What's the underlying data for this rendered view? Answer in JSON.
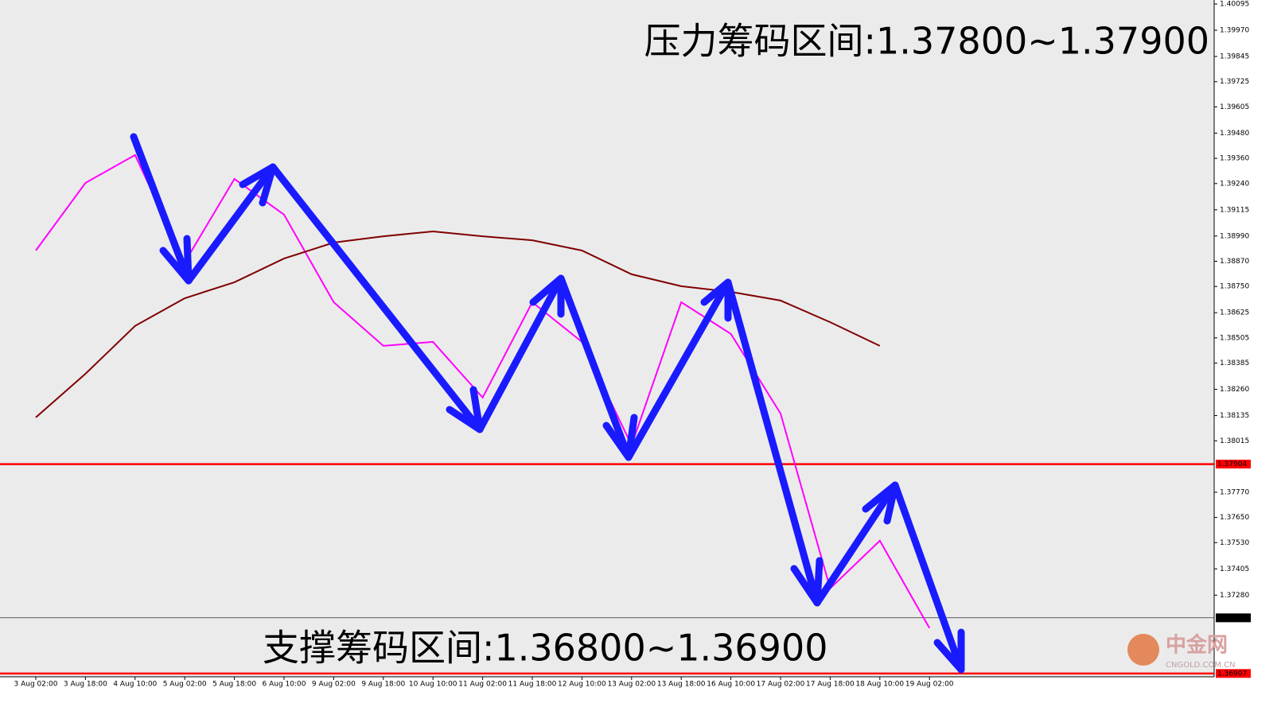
{
  "chart_data": {
    "type": "line",
    "annotations": [
      "压力筹码区间:1.37800~1.37900",
      "支撑筹码区间:1.36800~1.36900"
    ],
    "watermark": {
      "title": "中金网",
      "subtitle": "CNGOLD.COM.CN"
    },
    "categories": [
      "3 Aug 02:00",
      "3 Aug 18:00",
      "4 Aug 10:00",
      "5 Aug 02:00",
      "5 Aug 18:00",
      "6 Aug 10:00",
      "9 Aug 02:00",
      "9 Aug 18:00",
      "10 Aug 10:00",
      "11 Aug 02:00",
      "11 Aug 18:00",
      "12 Aug 10:00",
      "13 Aug 02:00",
      "13 Aug 18:00",
      "16 Aug 10:00",
      "17 Aug 02:00",
      "17 Aug 18:00",
      "18 Aug 10:00",
      "19 Aug 02:00"
    ],
    "series": [
      {
        "color": "#ff00ff",
        "values": [
          1.38921,
          1.39243,
          1.39376,
          1.38865,
          1.39262,
          1.39092,
          1.38675,
          1.38467,
          1.38486,
          1.38221,
          1.38675,
          1.38486,
          1.37994,
          1.38675,
          1.38524,
          1.38145,
          1.37312,
          1.37539,
          1.37123
        ]
      },
      {
        "color": "#800000",
        "values": [
          1.38126,
          1.38334,
          1.38562,
          1.38694,
          1.3877,
          1.38883,
          1.38959,
          1.38989,
          1.39012,
          1.38989,
          1.3897,
          1.38921,
          1.38808,
          1.38751,
          1.38724,
          1.38683,
          1.3858,
          1.38467,
          null
        ]
      }
    ],
    "levels": [
      {
        "value": 1.37904,
        "color": "#ff0000"
      },
      {
        "value": 1.37172,
        "color": "#000000"
      },
      {
        "value": 1.36907,
        "color": "#ff0000"
      }
    ],
    "ylim": [
      1.36895,
      1.40114
    ],
    "yticks": [
      {
        "value": 1.40095,
        "label": "1.40095"
      },
      {
        "value": 1.3997,
        "label": "1.39970"
      },
      {
        "value": 1.39845,
        "label": "1.39845"
      },
      {
        "value": 1.39725,
        "label": "1.39725"
      },
      {
        "value": 1.39605,
        "label": "1.39605"
      },
      {
        "value": 1.3948,
        "label": "1.39480"
      },
      {
        "value": 1.3936,
        "label": "1.39360"
      },
      {
        "value": 1.3924,
        "label": "1.39240"
      },
      {
        "value": 1.39115,
        "label": "1.39115"
      },
      {
        "value": 1.3899,
        "label": "1.38990"
      },
      {
        "value": 1.3887,
        "label": "1.38870"
      },
      {
        "value": 1.3875,
        "label": "1.38750"
      },
      {
        "value": 1.38625,
        "label": "1.38625"
      },
      {
        "value": 1.38505,
        "label": "1.38505"
      },
      {
        "value": 1.38385,
        "label": "1.38385"
      },
      {
        "value": 1.3826,
        "label": "1.38260"
      },
      {
        "value": 1.38135,
        "label": "1.38135"
      },
      {
        "value": 1.38015,
        "label": "1.38015"
      },
      {
        "value": 1.3777,
        "label": "1.37770"
      },
      {
        "value": 1.3765,
        "label": "1.37650"
      },
      {
        "value": 1.3753,
        "label": "1.37530"
      },
      {
        "value": 1.37405,
        "label": "1.37405"
      },
      {
        "value": 1.3728,
        "label": "1.37280"
      }
    ]
  }
}
